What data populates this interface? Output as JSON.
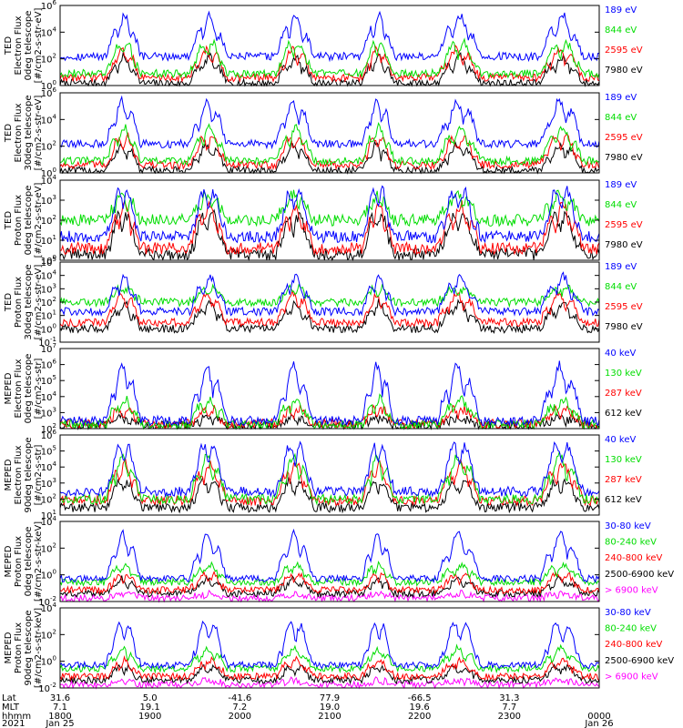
{
  "colors": {
    "blue": "#0000ff",
    "red": "#ff0000",
    "green": "#00dd00",
    "black": "#000000",
    "magenta": "#ff00ff"
  },
  "chart_data": [
    {
      "type": "line",
      "ylabel": [
        "TED",
        "Electron Flux",
        "0deg telescope",
        "[#/cm2-s-str-eV]"
      ],
      "ylim": [
        1,
        1000000
      ],
      "log": true,
      "ticks": [
        "10",
        "10",
        "10",
        "10"
      ],
      "exps": [
        "0",
        "2",
        "4",
        "6"
      ],
      "series": [
        {
          "name": "7980 eV",
          "color": "black",
          "base": 1.5,
          "peak": 150
        },
        {
          "name": "2595 eV",
          "color": "red",
          "base": 4,
          "peak": 600
        },
        {
          "name": "844 eV",
          "color": "green",
          "base": 8,
          "peak": 2500
        },
        {
          "name": "189 eV",
          "color": "blue",
          "base": 150,
          "peak": 200000
        }
      ]
    },
    {
      "type": "line",
      "ylabel": [
        "TED",
        "Electron Flux",
        "30deg telescope",
        "[#/cm2-s-str-eV]"
      ],
      "ylim": [
        1,
        1000000
      ],
      "log": true,
      "ticks": [
        "10",
        "10",
        "10",
        "10"
      ],
      "exps": [
        "0",
        "2",
        "4",
        "6"
      ],
      "series": [
        {
          "name": "7980 eV",
          "color": "black",
          "base": 1.5,
          "peak": 150
        },
        {
          "name": "2595 eV",
          "color": "red",
          "base": 4,
          "peak": 800
        },
        {
          "name": "844 eV",
          "color": "green",
          "base": 8,
          "peak": 3000
        },
        {
          "name": "189 eV",
          "color": "blue",
          "base": 150,
          "peak": 300000
        }
      ]
    },
    {
      "type": "line",
      "ylabel": [
        "TED",
        "Proton Flux",
        "0deg telescope",
        "[#/cm2-s-str-eV]"
      ],
      "ylim": [
        1,
        10000
      ],
      "log": true,
      "ticks": [
        "10",
        "10",
        "10",
        "10",
        "10"
      ],
      "exps": [
        "0",
        "1",
        "2",
        "3",
        "4"
      ],
      "series": [
        {
          "name": "7980 eV",
          "color": "black",
          "base": 2,
          "peak": 300
        },
        {
          "name": "2595 eV",
          "color": "red",
          "base": 4,
          "peak": 600
        },
        {
          "name": "844 eV",
          "color": "green",
          "base": 100,
          "peak": 2000
        },
        {
          "name": "189 eV",
          "color": "blue",
          "base": 15,
          "peak": 5000
        }
      ]
    },
    {
      "type": "line",
      "ylabel": [
        "TED",
        "Proton Flux",
        "30deg telescope",
        "[#/cm2-s-str-eV]"
      ],
      "ylim": [
        0.1,
        100000
      ],
      "log": true,
      "ticks": [
        "10",
        "10",
        "10",
        "10",
        "10",
        "10",
        "10"
      ],
      "exps": [
        "-1",
        "0",
        "1",
        "2",
        "3",
        "4",
        "5"
      ],
      "series": [
        {
          "name": "7980 eV",
          "color": "black",
          "base": 1,
          "peak": 100
        },
        {
          "name": "2595 eV",
          "color": "red",
          "base": 3,
          "peak": 500
        },
        {
          "name": "844 eV",
          "color": "green",
          "base": 100,
          "peak": 1500
        },
        {
          "name": "189 eV",
          "color": "blue",
          "base": 20,
          "peak": 10000
        }
      ]
    },
    {
      "type": "line",
      "ylabel": [
        "MEPED",
        "Electron Flux",
        "0deg telescope",
        "[#/cm2-s-str]"
      ],
      "ylim": [
        100,
        10000000
      ],
      "log": true,
      "ticks": [
        "10",
        "10",
        "10",
        "10",
        "10",
        "10"
      ],
      "exps": [
        "2",
        "3",
        "4",
        "5",
        "6",
        "7"
      ],
      "series": [
        {
          "name": "612 keV",
          "color": "black",
          "base": 150,
          "peak": 500
        },
        {
          "name": "287 keV",
          "color": "red",
          "base": 200,
          "peak": 2000
        },
        {
          "name": "130 keV",
          "color": "green",
          "base": 180,
          "peak": 8000
        },
        {
          "name": "40 keV",
          "color": "blue",
          "base": 300,
          "peak": 1000000
        }
      ]
    },
    {
      "type": "line",
      "ylabel": [
        "MEPED",
        "Electron Flux",
        "90deg telescope",
        "[#/cm2-s-str]"
      ],
      "ylim": [
        10,
        1000000
      ],
      "log": true,
      "ticks": [
        "10",
        "10",
        "10",
        "10",
        "10",
        "10"
      ],
      "exps": [
        "1",
        "2",
        "3",
        "4",
        "5",
        "6"
      ],
      "series": [
        {
          "name": "612 keV",
          "color": "black",
          "base": 30,
          "peak": 2000
        },
        {
          "name": "287 keV",
          "color": "red",
          "base": 80,
          "peak": 20000
        },
        {
          "name": "130 keV",
          "color": "green",
          "base": 100,
          "peak": 60000
        },
        {
          "name": "40 keV",
          "color": "blue",
          "base": 300,
          "peak": 500000
        }
      ]
    },
    {
      "type": "line",
      "ylabel": [
        "MEPED",
        "Proton Flux",
        "0deg telescope",
        "[#/cm2-s-str-keV]"
      ],
      "ylim": [
        0.01,
        100000
      ],
      "log": true,
      "ticks": [
        "10",
        "10",
        "10",
        "10"
      ],
      "exps": [
        "-2",
        "0",
        "2",
        "4"
      ],
      "series": [
        {
          "name": "> 6900 keV",
          "color": "magenta",
          "base": 0.02,
          "peak": 0.05
        },
        {
          "name": "2500-6900 keV",
          "color": "black",
          "base": 0.05,
          "peak": 1
        },
        {
          "name": "240-800 keV",
          "color": "red",
          "base": 0.1,
          "peak": 3
        },
        {
          "name": "80-240 keV",
          "color": "green",
          "base": 0.5,
          "peak": 20
        },
        {
          "name": "30-80 keV",
          "color": "blue",
          "base": 1,
          "peak": 10000
        }
      ]
    },
    {
      "type": "line",
      "ylabel": [
        "MEPED",
        "Proton Flux",
        "90deg telescope",
        "[#/cm2-s-str-keV]"
      ],
      "ylim": [
        0.01,
        100000
      ],
      "log": true,
      "ticks": [
        "10",
        "10",
        "10",
        "10"
      ],
      "exps": [
        "-2",
        "0",
        "2",
        "4"
      ],
      "series": [
        {
          "name": "> 6900 keV",
          "color": "magenta",
          "base": 0.02,
          "peak": 0.05
        },
        {
          "name": "2500-6900 keV",
          "color": "black",
          "base": 0.05,
          "peak": 1
        },
        {
          "name": "240-800 keV",
          "color": "red",
          "base": 0.1,
          "peak": 3
        },
        {
          "name": "80-240 keV",
          "color": "green",
          "base": 0.5,
          "peak": 30
        },
        {
          "name": "30-80 keV",
          "color": "blue",
          "base": 1,
          "peak": 10000
        }
      ]
    }
  ],
  "xaxis": {
    "row_labels": [
      "Lat",
      "MLT",
      "hhmm",
      "2021"
    ],
    "ticks": [
      {
        "lat": "31.6",
        "mlt": "7.1",
        "hhmm": "1800",
        "date": "Jan 25"
      },
      {
        "lat": "5.0",
        "mlt": "19.1",
        "hhmm": "1900",
        "date": ""
      },
      {
        "lat": "-41.6",
        "mlt": "7.2",
        "hhmm": "2000",
        "date": ""
      },
      {
        "lat": "77.9",
        "mlt": "19.0",
        "hhmm": "2100",
        "date": ""
      },
      {
        "lat": "-66.5",
        "mlt": "19.6",
        "hhmm": "2200",
        "date": ""
      },
      {
        "lat": "31.3",
        "mlt": "7.7",
        "hhmm": "2300",
        "date": ""
      },
      {
        "lat": "",
        "mlt": "",
        "hhmm": "0000",
        "date": "Jan 26"
      }
    ]
  }
}
